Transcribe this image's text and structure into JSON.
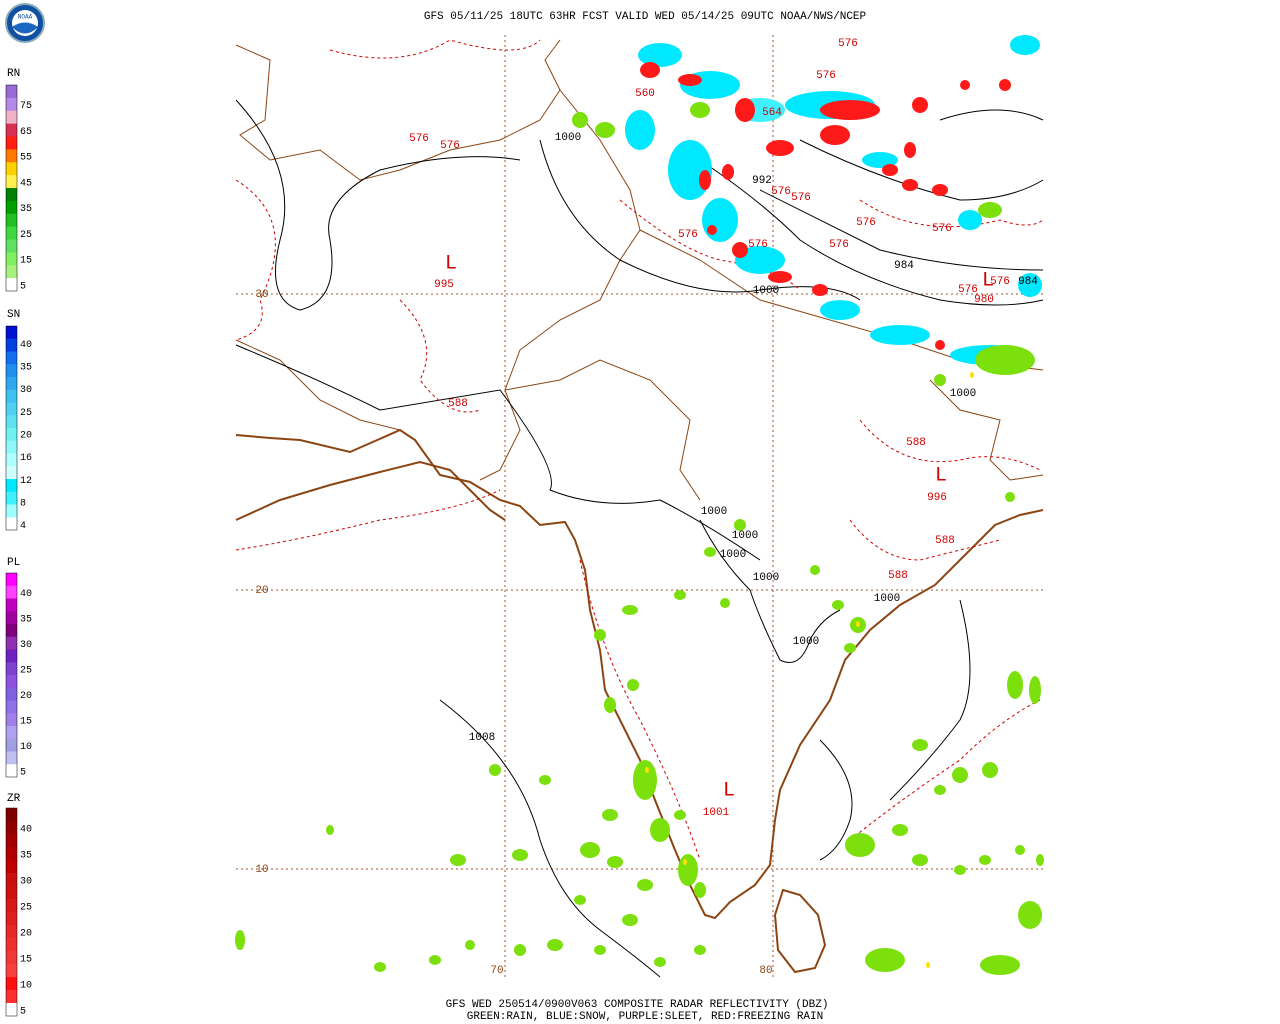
{
  "header": {
    "logo": "NOAA",
    "title": "GFS 05/11/25 18UTC 63HR FCST VALID WED 05/14/25 09UTC NOAA/NWS/NCEP"
  },
  "legends": [
    {
      "label": "RN",
      "ticks": [
        75,
        65,
        55,
        45,
        35,
        25,
        15,
        5
      ],
      "colors": [
        "#9a6ad6",
        "#b58ae6",
        "#f0b0c8",
        "#d83050",
        "#ff2010",
        "#ff7800",
        "#ffd000",
        "#fff050",
        "#008000",
        "#00a000",
        "#20c020",
        "#40d840",
        "#60e060",
        "#80f060",
        "#a8f080",
        "#ffffff"
      ]
    },
    {
      "label": "SN",
      "ticks": [
        40,
        35,
        30,
        25,
        20,
        16,
        12,
        8,
        4
      ],
      "colors": [
        "#0010d0",
        "#0040e0",
        "#1070f0",
        "#2090f0",
        "#30a8f0",
        "#40c0f0",
        "#50d0f0",
        "#60e0f0",
        "#70f0f0",
        "#90f8f8",
        "#b0ffff",
        "#d0ffff",
        "#00e8ff",
        "#40f0ff",
        "#a0ffff",
        "#ffffff"
      ]
    },
    {
      "label": "PL",
      "ticks": [
        40,
        35,
        30,
        25,
        20,
        15,
        10,
        5
      ],
      "colors": [
        "#ff00ff",
        "#ff40ff",
        "#c000c0",
        "#a000a0",
        "#800080",
        "#9030b0",
        "#7020c0",
        "#8040d0",
        "#9050e0",
        "#8060e0",
        "#9070e8",
        "#a080e8",
        "#b0a0f0",
        "#a0a0e0",
        "#c0c0f0",
        "#ffffff"
      ]
    },
    {
      "label": "ZR",
      "ticks": [
        40,
        35,
        30,
        25,
        20,
        15,
        10,
        5
      ],
      "colors": [
        "#800000",
        "#900000",
        "#a00000",
        "#b00000",
        "#c00000",
        "#c81010",
        "#d01010",
        "#d81818",
        "#e02020",
        "#e82828",
        "#f03030",
        "#f03838",
        "#f84040",
        "#ff1010",
        "#ff3030",
        "#ffffff"
      ]
    }
  ],
  "map": {
    "grid_labels": [
      "30",
      "20",
      "10",
      "70",
      "80"
    ],
    "contour_labels": [
      {
        "text": "576",
        "color": "#d00000"
      },
      {
        "text": "576",
        "color": "#d00000"
      },
      {
        "text": "576",
        "color": "#d00000"
      },
      {
        "text": "576",
        "color": "#d00000"
      },
      {
        "text": "1000",
        "color": "#000000"
      },
      {
        "text": "560",
        "color": "#d00000"
      },
      {
        "text": "564",
        "color": "#d00000"
      },
      {
        "text": "992",
        "color": "#000000"
      },
      {
        "text": "576",
        "color": "#d00000"
      },
      {
        "text": "576",
        "color": "#d00000"
      },
      {
        "text": "576",
        "color": "#d00000"
      },
      {
        "text": "576",
        "color": "#d00000"
      },
      {
        "text": "576",
        "color": "#d00000"
      },
      {
        "text": "576",
        "color": "#d00000"
      },
      {
        "text": "576",
        "color": "#d00000"
      },
      {
        "text": "984",
        "color": "#000000"
      },
      {
        "text": "1000",
        "color": "#000000"
      },
      {
        "text": "576",
        "color": "#d00000"
      },
      {
        "text": "576",
        "color": "#d00000"
      },
      {
        "text": "984",
        "color": "#000000"
      },
      {
        "text": "588",
        "color": "#d00000"
      },
      {
        "text": "588",
        "color": "#d00000"
      },
      {
        "text": "588",
        "color": "#d00000"
      },
      {
        "text": "588",
        "color": "#d00000"
      },
      {
        "text": "1000",
        "color": "#000000"
      },
      {
        "text": "1000",
        "color": "#000000"
      },
      {
        "text": "1000",
        "color": "#000000"
      },
      {
        "text": "1000",
        "color": "#000000"
      },
      {
        "text": "1000",
        "color": "#000000"
      },
      {
        "text": "1000",
        "color": "#000000"
      },
      {
        "text": "1008",
        "color": "#000000"
      },
      {
        "text": "1000",
        "color": "#000000"
      }
    ],
    "pressure_centers": [
      {
        "symbol": "L",
        "value": "995"
      },
      {
        "symbol": "L",
        "value": "996"
      },
      {
        "symbol": "L",
        "value": "1001"
      },
      {
        "symbol": "L",
        "value": "980"
      }
    ]
  },
  "footer": {
    "line1": "GFS WED 250514/0900V063 COMPOSITE RADAR REFLECTIVITY (DBZ)",
    "line2": "GREEN:RAIN, BLUE:SNOW, PURPLE:SLEET, RED:FREEZING RAIN"
  }
}
